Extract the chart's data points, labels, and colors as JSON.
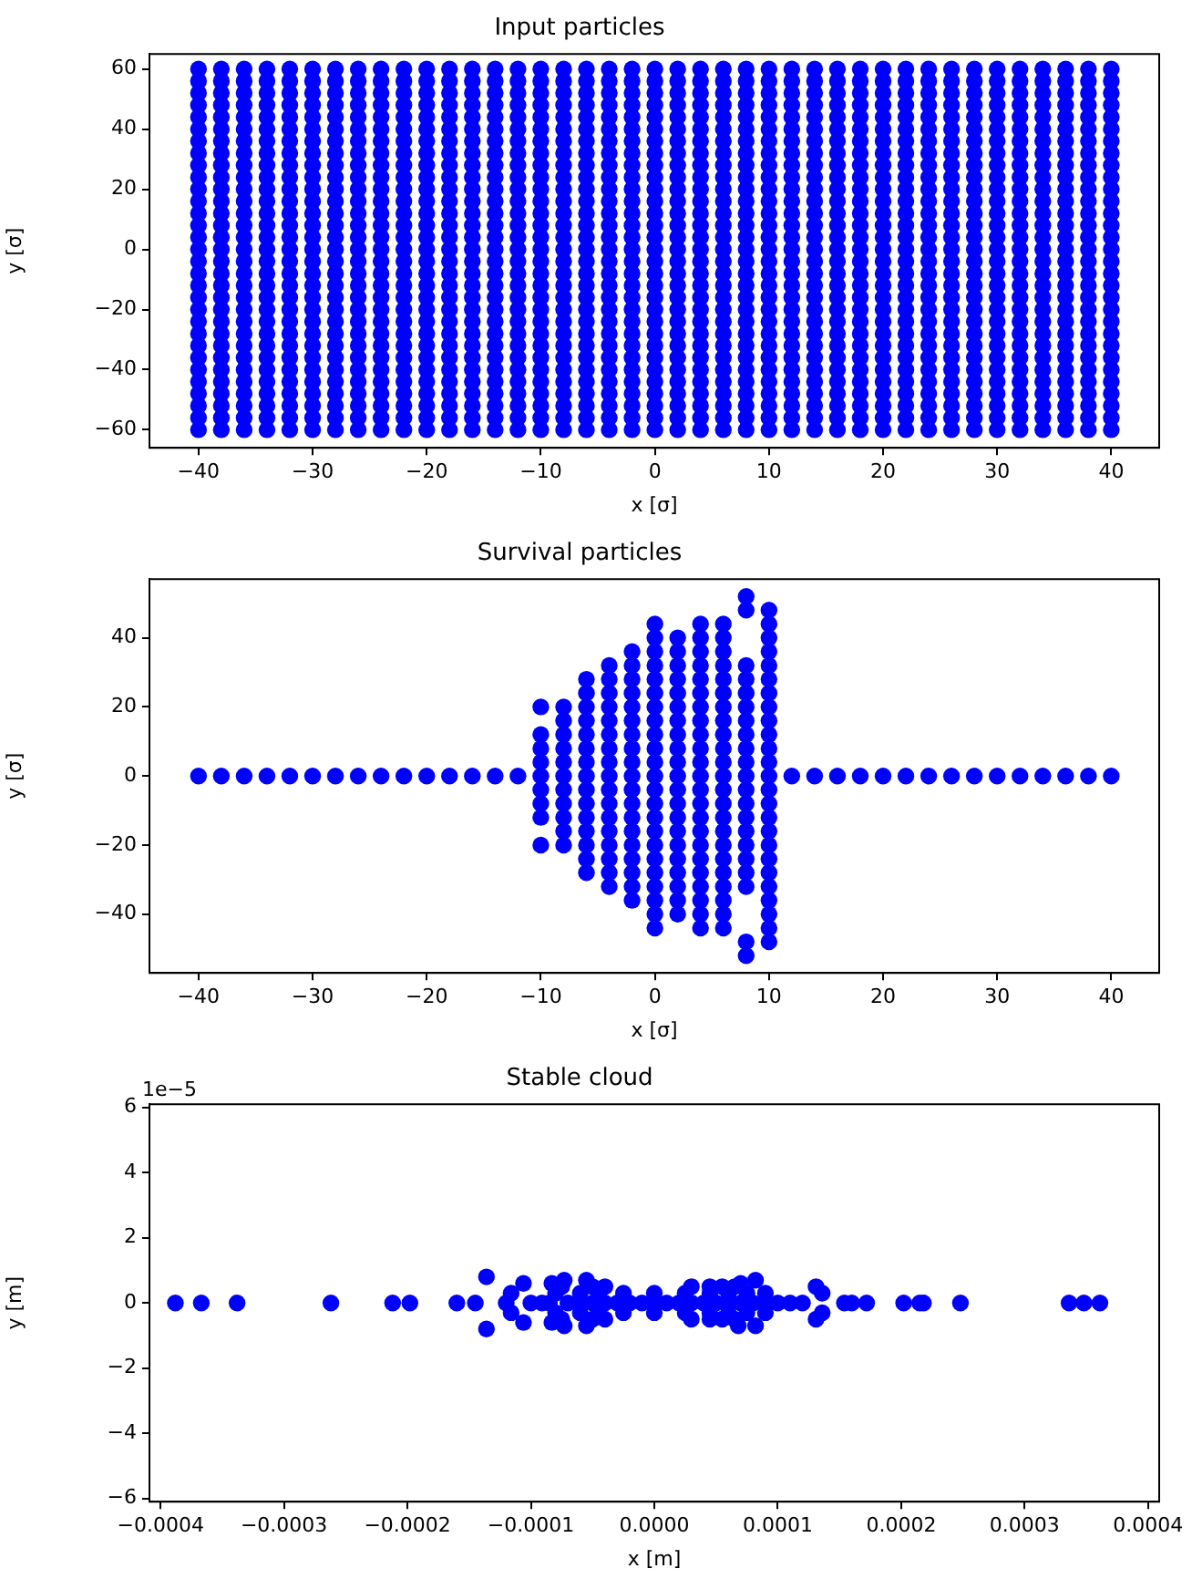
{
  "chart_data": [
    {
      "type": "scatter",
      "title": "Input particles",
      "xlabel": "x [σ]",
      "ylabel": "y [σ]",
      "marker": "circle",
      "x": [
        -40,
        -38,
        -36,
        -34,
        -32,
        -30,
        -28,
        -26,
        -24,
        -22,
        -20,
        -18,
        -16,
        -14,
        -12,
        -10,
        -8,
        -6,
        -4,
        -2,
        0,
        2,
        4,
        6,
        8,
        10,
        12,
        14,
        16,
        18,
        20,
        22,
        24,
        26,
        28,
        30,
        32,
        34,
        36,
        38,
        40
      ],
      "xlim": [
        -44.3,
        44.2
      ],
      "ylim": [
        -66,
        65
      ],
      "xticks": [
        {
          "value": -40,
          "label": "−40"
        },
        {
          "value": -30,
          "label": "−30"
        },
        {
          "value": -20,
          "label": "−20"
        },
        {
          "value": -10,
          "label": "−10"
        },
        0,
        10,
        20,
        30,
        40
      ],
      "yticks": [
        {
          "value": -60,
          "label": "−60"
        },
        {
          "value": -40,
          "label": "−40"
        },
        {
          "value": -20,
          "label": "−20"
        },
        0,
        20,
        40,
        60
      ],
      "series": [
        {
          "color": "#0000ff",
          "values": [
            60,
            60,
            60,
            60,
            60,
            60,
            60,
            60,
            60,
            60,
            60,
            60,
            60,
            60,
            60,
            60,
            60,
            60,
            60,
            60,
            60,
            60,
            60,
            60,
            60,
            60,
            60,
            60,
            60,
            60,
            60,
            60,
            60,
            60,
            60,
            60,
            60,
            60,
            60,
            60,
            60
          ]
        },
        {
          "color": "#0000ff",
          "values": [
            56,
            56,
            56,
            56,
            56,
            56,
            56,
            56,
            56,
            56,
            56,
            56,
            56,
            56,
            56,
            56,
            56,
            56,
            56,
            56,
            56,
            56,
            56,
            56,
            56,
            56,
            56,
            56,
            56,
            56,
            56,
            56,
            56,
            56,
            56,
            56,
            56,
            56,
            56,
            56,
            56
          ]
        },
        {
          "color": "#0000ff",
          "values": [
            52,
            52,
            52,
            52,
            52,
            52,
            52,
            52,
            52,
            52,
            52,
            52,
            52,
            52,
            52,
            52,
            52,
            52,
            52,
            52,
            52,
            52,
            52,
            52,
            52,
            52,
            52,
            52,
            52,
            52,
            52,
            52,
            52,
            52,
            52,
            52,
            52,
            52,
            52,
            52,
            52
          ]
        },
        {
          "color": "#0000ff",
          "values": [
            48,
            48,
            48,
            48,
            48,
            48,
            48,
            48,
            48,
            48,
            48,
            48,
            48,
            48,
            48,
            48,
            48,
            48,
            48,
            48,
            48,
            48,
            48,
            48,
            48,
            48,
            48,
            48,
            48,
            48,
            48,
            48,
            48,
            48,
            48,
            48,
            48,
            48,
            48,
            48,
            48
          ]
        },
        {
          "color": "#0000ff",
          "values": [
            44,
            44,
            44,
            44,
            44,
            44,
            44,
            44,
            44,
            44,
            44,
            44,
            44,
            44,
            44,
            44,
            44,
            44,
            44,
            44,
            44,
            44,
            44,
            44,
            44,
            44,
            44,
            44,
            44,
            44,
            44,
            44,
            44,
            44,
            44,
            44,
            44,
            44,
            44,
            44,
            44
          ]
        },
        {
          "color": "#0000ff",
          "values": [
            40,
            40,
            40,
            40,
            40,
            40,
            40,
            40,
            40,
            40,
            40,
            40,
            40,
            40,
            40,
            40,
            40,
            40,
            40,
            40,
            40,
            40,
            40,
            40,
            40,
            40,
            40,
            40,
            40,
            40,
            40,
            40,
            40,
            40,
            40,
            40,
            40,
            40,
            40,
            40,
            40
          ]
        },
        {
          "color": "#0000ff",
          "values": [
            36,
            36,
            36,
            36,
            36,
            36,
            36,
            36,
            36,
            36,
            36,
            36,
            36,
            36,
            36,
            36,
            36,
            36,
            36,
            36,
            36,
            36,
            36,
            36,
            36,
            36,
            36,
            36,
            36,
            36,
            36,
            36,
            36,
            36,
            36,
            36,
            36,
            36,
            36,
            36,
            36
          ]
        },
        {
          "color": "#0000ff",
          "values": [
            32,
            32,
            32,
            32,
            32,
            32,
            32,
            32,
            32,
            32,
            32,
            32,
            32,
            32,
            32,
            32,
            32,
            32,
            32,
            32,
            32,
            32,
            32,
            32,
            32,
            32,
            32,
            32,
            32,
            32,
            32,
            32,
            32,
            32,
            32,
            32,
            32,
            32,
            32,
            32,
            32
          ]
        },
        {
          "color": "#0000ff",
          "values": [
            28,
            28,
            28,
            28,
            28,
            28,
            28,
            28,
            28,
            28,
            28,
            28,
            28,
            28,
            28,
            28,
            28,
            28,
            28,
            28,
            28,
            28,
            28,
            28,
            28,
            28,
            28,
            28,
            28,
            28,
            28,
            28,
            28,
            28,
            28,
            28,
            28,
            28,
            28,
            28,
            28
          ]
        },
        {
          "color": "#0000ff",
          "values": [
            24,
            24,
            24,
            24,
            24,
            24,
            24,
            24,
            24,
            24,
            24,
            24,
            24,
            24,
            24,
            24,
            24,
            24,
            24,
            24,
            24,
            24,
            24,
            24,
            24,
            24,
            24,
            24,
            24,
            24,
            24,
            24,
            24,
            24,
            24,
            24,
            24,
            24,
            24,
            24,
            24
          ]
        },
        {
          "color": "#0000ff",
          "values": [
            20,
            20,
            20,
            20,
            20,
            20,
            20,
            20,
            20,
            20,
            20,
            20,
            20,
            20,
            20,
            20,
            20,
            20,
            20,
            20,
            20,
            20,
            20,
            20,
            20,
            20,
            20,
            20,
            20,
            20,
            20,
            20,
            20,
            20,
            20,
            20,
            20,
            20,
            20,
            20,
            20
          ]
        },
        {
          "color": "#0000ff",
          "values": [
            16,
            16,
            16,
            16,
            16,
            16,
            16,
            16,
            16,
            16,
            16,
            16,
            16,
            16,
            16,
            16,
            16,
            16,
            16,
            16,
            16,
            16,
            16,
            16,
            16,
            16,
            16,
            16,
            16,
            16,
            16,
            16,
            16,
            16,
            16,
            16,
            16,
            16,
            16,
            16,
            16
          ]
        },
        {
          "color": "#0000ff",
          "values": [
            12,
            12,
            12,
            12,
            12,
            12,
            12,
            12,
            12,
            12,
            12,
            12,
            12,
            12,
            12,
            12,
            12,
            12,
            12,
            12,
            12,
            12,
            12,
            12,
            12,
            12,
            12,
            12,
            12,
            12,
            12,
            12,
            12,
            12,
            12,
            12,
            12,
            12,
            12,
            12,
            12
          ]
        },
        {
          "color": "#0000ff",
          "values": [
            8,
            8,
            8,
            8,
            8,
            8,
            8,
            8,
            8,
            8,
            8,
            8,
            8,
            8,
            8,
            8,
            8,
            8,
            8,
            8,
            8,
            8,
            8,
            8,
            8,
            8,
            8,
            8,
            8,
            8,
            8,
            8,
            8,
            8,
            8,
            8,
            8,
            8,
            8,
            8,
            8
          ]
        },
        {
          "color": "#0000ff",
          "values": [
            4,
            4,
            4,
            4,
            4,
            4,
            4,
            4,
            4,
            4,
            4,
            4,
            4,
            4,
            4,
            4,
            4,
            4,
            4,
            4,
            4,
            4,
            4,
            4,
            4,
            4,
            4,
            4,
            4,
            4,
            4,
            4,
            4,
            4,
            4,
            4,
            4,
            4,
            4,
            4,
            4
          ]
        },
        {
          "color": "#0000ff",
          "values": [
            0,
            0,
            0,
            0,
            0,
            0,
            0,
            0,
            0,
            0,
            0,
            0,
            0,
            0,
            0,
            0,
            0,
            0,
            0,
            0,
            0,
            0,
            0,
            0,
            0,
            0,
            0,
            0,
            0,
            0,
            0,
            0,
            0,
            0,
            0,
            0,
            0,
            0,
            0,
            0,
            0
          ]
        },
        {
          "color": "#0000ff",
          "values": [
            -4,
            -4,
            -4,
            -4,
            -4,
            -4,
            -4,
            -4,
            -4,
            -4,
            -4,
            -4,
            -4,
            -4,
            -4,
            -4,
            -4,
            -4,
            -4,
            -4,
            -4,
            -4,
            -4,
            -4,
            -4,
            -4,
            -4,
            -4,
            -4,
            -4,
            -4,
            -4,
            -4,
            -4,
            -4,
            -4,
            -4,
            -4,
            -4,
            -4,
            -4
          ]
        },
        {
          "color": "#0000ff",
          "values": [
            -8,
            -8,
            -8,
            -8,
            -8,
            -8,
            -8,
            -8,
            -8,
            -8,
            -8,
            -8,
            -8,
            -8,
            -8,
            -8,
            -8,
            -8,
            -8,
            -8,
            -8,
            -8,
            -8,
            -8,
            -8,
            -8,
            -8,
            -8,
            -8,
            -8,
            -8,
            -8,
            -8,
            -8,
            -8,
            -8,
            -8,
            -8,
            -8,
            -8,
            -8
          ]
        },
        {
          "color": "#0000ff",
          "values": [
            -12,
            -12,
            -12,
            -12,
            -12,
            -12,
            -12,
            -12,
            -12,
            -12,
            -12,
            -12,
            -12,
            -12,
            -12,
            -12,
            -12,
            -12,
            -12,
            -12,
            -12,
            -12,
            -12,
            -12,
            -12,
            -12,
            -12,
            -12,
            -12,
            -12,
            -12,
            -12,
            -12,
            -12,
            -12,
            -12,
            -12,
            -12,
            -12,
            -12,
            -12
          ]
        },
        {
          "color": "#0000ff",
          "values": [
            -16,
            -16,
            -16,
            -16,
            -16,
            -16,
            -16,
            -16,
            -16,
            -16,
            -16,
            -16,
            -16,
            -16,
            -16,
            -16,
            -16,
            -16,
            -16,
            -16,
            -16,
            -16,
            -16,
            -16,
            -16,
            -16,
            -16,
            -16,
            -16,
            -16,
            -16,
            -16,
            -16,
            -16,
            -16,
            -16,
            -16,
            -16,
            -16,
            -16,
            -16
          ]
        },
        {
          "color": "#0000ff",
          "values": [
            -20,
            -20,
            -20,
            -20,
            -20,
            -20,
            -20,
            -20,
            -20,
            -20,
            -20,
            -20,
            -20,
            -20,
            -20,
            -20,
            -20,
            -20,
            -20,
            -20,
            -20,
            -20,
            -20,
            -20,
            -20,
            -20,
            -20,
            -20,
            -20,
            -20,
            -20,
            -20,
            -20,
            -20,
            -20,
            -20,
            -20,
            -20,
            -20,
            -20,
            -20
          ]
        },
        {
          "color": "#0000ff",
          "values": [
            -24,
            -24,
            -24,
            -24,
            -24,
            -24,
            -24,
            -24,
            -24,
            -24,
            -24,
            -24,
            -24,
            -24,
            -24,
            -24,
            -24,
            -24,
            -24,
            -24,
            -24,
            -24,
            -24,
            -24,
            -24,
            -24,
            -24,
            -24,
            -24,
            -24,
            -24,
            -24,
            -24,
            -24,
            -24,
            -24,
            -24,
            -24,
            -24,
            -24,
            -24
          ]
        },
        {
          "color": "#0000ff",
          "values": [
            -28,
            -28,
            -28,
            -28,
            -28,
            -28,
            -28,
            -28,
            -28,
            -28,
            -28,
            -28,
            -28,
            -28,
            -28,
            -28,
            -28,
            -28,
            -28,
            -28,
            -28,
            -28,
            -28,
            -28,
            -28,
            -28,
            -28,
            -28,
            -28,
            -28,
            -28,
            -28,
            -28,
            -28,
            -28,
            -28,
            -28,
            -28,
            -28,
            -28,
            -28
          ]
        },
        {
          "color": "#0000ff",
          "values": [
            -32,
            -32,
            -32,
            -32,
            -32,
            -32,
            -32,
            -32,
            -32,
            -32,
            -32,
            -32,
            -32,
            -32,
            -32,
            -32,
            -32,
            -32,
            -32,
            -32,
            -32,
            -32,
            -32,
            -32,
            -32,
            -32,
            -32,
            -32,
            -32,
            -32,
            -32,
            -32,
            -32,
            -32,
            -32,
            -32,
            -32,
            -32,
            -32,
            -32,
            -32
          ]
        },
        {
          "color": "#0000ff",
          "values": [
            -36,
            -36,
            -36,
            -36,
            -36,
            -36,
            -36,
            -36,
            -36,
            -36,
            -36,
            -36,
            -36,
            -36,
            -36,
            -36,
            -36,
            -36,
            -36,
            -36,
            -36,
            -36,
            -36,
            -36,
            -36,
            -36,
            -36,
            -36,
            -36,
            -36,
            -36,
            -36,
            -36,
            -36,
            -36,
            -36,
            -36,
            -36,
            -36,
            -36,
            -36
          ]
        },
        {
          "color": "#0000ff",
          "values": [
            -40,
            -40,
            -40,
            -40,
            -40,
            -40,
            -40,
            -40,
            -40,
            -40,
            -40,
            -40,
            -40,
            -40,
            -40,
            -40,
            -40,
            -40,
            -40,
            -40,
            -40,
            -40,
            -40,
            -40,
            -40,
            -40,
            -40,
            -40,
            -40,
            -40,
            -40,
            -40,
            -40,
            -40,
            -40,
            -40,
            -40,
            -40,
            -40,
            -40,
            -40
          ]
        },
        {
          "color": "#0000ff",
          "values": [
            -44,
            -44,
            -44,
            -44,
            -44,
            -44,
            -44,
            -44,
            -44,
            -44,
            -44,
            -44,
            -44,
            -44,
            -44,
            -44,
            -44,
            -44,
            -44,
            -44,
            -44,
            -44,
            -44,
            -44,
            -44,
            -44,
            -44,
            -44,
            -44,
            -44,
            -44,
            -44,
            -44,
            -44,
            -44,
            -44,
            -44,
            -44,
            -44,
            -44,
            -44
          ]
        },
        {
          "color": "#0000ff",
          "values": [
            -48,
            -48,
            -48,
            -48,
            -48,
            -48,
            -48,
            -48,
            -48,
            -48,
            -48,
            -48,
            -48,
            -48,
            -48,
            -48,
            -48,
            -48,
            -48,
            -48,
            -48,
            -48,
            -48,
            -48,
            -48,
            -48,
            -48,
            -48,
            -48,
            -48,
            -48,
            -48,
            -48,
            -48,
            -48,
            -48,
            -48,
            -48,
            -48,
            -48,
            -48
          ]
        },
        {
          "color": "#0000ff",
          "values": [
            -52,
            -52,
            -52,
            -52,
            -52,
            -52,
            -52,
            -52,
            -52,
            -52,
            -52,
            -52,
            -52,
            -52,
            -52,
            -52,
            -52,
            -52,
            -52,
            -52,
            -52,
            -52,
            -52,
            -52,
            -52,
            -52,
            -52,
            -52,
            -52,
            -52,
            -52,
            -52,
            -52,
            -52,
            -52,
            -52,
            -52,
            -52,
            -52,
            -52,
            -52
          ]
        },
        {
          "color": "#0000ff",
          "values": [
            -56,
            -56,
            -56,
            -56,
            -56,
            -56,
            -56,
            -56,
            -56,
            -56,
            -56,
            -56,
            -56,
            -56,
            -56,
            -56,
            -56,
            -56,
            -56,
            -56,
            -56,
            -56,
            -56,
            -56,
            -56,
            -56,
            -56,
            -56,
            -56,
            -56,
            -56,
            -56,
            -56,
            -56,
            -56,
            -56,
            -56,
            -56,
            -56,
            -56,
            -56
          ]
        },
        {
          "color": "#0000ff",
          "values": [
            -60,
            -60,
            -60,
            -60,
            -60,
            -60,
            -60,
            -60,
            -60,
            -60,
            -60,
            -60,
            -60,
            -60,
            -60,
            -60,
            -60,
            -60,
            -60,
            -60,
            -60,
            -60,
            -60,
            -60,
            -60,
            -60,
            -60,
            -60,
            -60,
            -60,
            -60,
            -60,
            -60,
            -60,
            -60,
            -60,
            -60,
            -60,
            -60,
            -60,
            -60
          ]
        }
      ]
    },
    {
      "type": "scatter",
      "title": "Survival particles",
      "xlabel": "x [σ]",
      "ylabel": "y [σ]",
      "marker": "circle",
      "xlim": [
        -44.3,
        44.2
      ],
      "ylim": [
        -57,
        57
      ],
      "xticks": [
        {
          "value": -40,
          "label": "−40"
        },
        {
          "value": -30,
          "label": "−30"
        },
        {
          "value": -20,
          "label": "−20"
        },
        {
          "value": -10,
          "label": "−10"
        },
        0,
        10,
        20,
        30,
        40
      ],
      "yticks": [
        {
          "value": -40,
          "label": "−40"
        },
        {
          "value": -20,
          "label": "−20"
        },
        0,
        20,
        40
      ],
      "series": [
        {
          "color": "#0000ff",
          "x": [
            -40,
            -38,
            -36,
            -34,
            -32,
            -30,
            -28,
            -26,
            -24,
            -22,
            -20,
            -18,
            -16,
            -14,
            -12,
            -10,
            -10,
            -10,
            -10,
            -10,
            -10,
            -10,
            -10,
            -10,
            -8,
            -8,
            -8,
            -8,
            -8,
            -8,
            -8,
            -8,
            -8,
            -8,
            -8,
            -6,
            -6,
            -6,
            -6,
            -6,
            -6,
            -6,
            -6,
            -6,
            -6,
            -6,
            -6,
            -6,
            -6,
            -6,
            -4,
            -4,
            -4,
            -4,
            -4,
            -4,
            -4,
            -4,
            -4,
            -4,
            -4,
            -4,
            -4,
            -4,
            -4,
            -4,
            -4,
            -2,
            -2,
            -2,
            -2,
            -2,
            -2,
            -2,
            -2,
            -2,
            -2,
            -2,
            -2,
            -2,
            -2,
            -2,
            -2,
            -2,
            -2,
            -2,
            0,
            0,
            0,
            0,
            0,
            0,
            0,
            0,
            0,
            0,
            0,
            0,
            0,
            0,
            0,
            0,
            0,
            0,
            0,
            0,
            0,
            0,
            0,
            2,
            2,
            2,
            2,
            2,
            2,
            2,
            2,
            2,
            2,
            2,
            2,
            2,
            2,
            2,
            2,
            2,
            2,
            2,
            2,
            2,
            4,
            4,
            4,
            4,
            4,
            4,
            4,
            4,
            4,
            4,
            4,
            4,
            4,
            4,
            4,
            4,
            4,
            4,
            4,
            4,
            4,
            4,
            4,
            6,
            6,
            6,
            6,
            6,
            6,
            6,
            6,
            6,
            6,
            6,
            6,
            6,
            6,
            6,
            6,
            6,
            6,
            6,
            6,
            6,
            6,
            6,
            8,
            8,
            8,
            8,
            8,
            8,
            8,
            8,
            8,
            8,
            8,
            8,
            8,
            8,
            8,
            8,
            8,
            8,
            8,
            8,
            8,
            10,
            10,
            10,
            10,
            10,
            10,
            10,
            10,
            10,
            10,
            10,
            10,
            10,
            10,
            10,
            10,
            10,
            10,
            10,
            10,
            10,
            10,
            10,
            10,
            10,
            12,
            14,
            16,
            18,
            20,
            22,
            24,
            26,
            28,
            30,
            32,
            34,
            36,
            38,
            40
          ],
          "values": [
            0,
            0,
            0,
            0,
            0,
            0,
            0,
            0,
            0,
            0,
            0,
            0,
            0,
            0,
            0,
            20,
            12,
            8,
            4,
            0,
            -4,
            -8,
            -12,
            -20,
            20,
            16,
            12,
            8,
            4,
            0,
            -4,
            -8,
            -12,
            -16,
            -20,
            28,
            24,
            20,
            16,
            12,
            8,
            4,
            0,
            -4,
            -8,
            -12,
            -16,
            -20,
            -24,
            -28,
            32,
            28,
            24,
            20,
            16,
            12,
            8,
            4,
            0,
            -4,
            -8,
            -12,
            -16,
            -20,
            -24,
            -28,
            -32,
            36,
            32,
            28,
            24,
            20,
            16,
            12,
            8,
            4,
            0,
            -4,
            -8,
            -12,
            -16,
            -20,
            -24,
            -28,
            -32,
            -36,
            44,
            40,
            36,
            32,
            28,
            24,
            20,
            16,
            12,
            8,
            4,
            0,
            -4,
            -8,
            -12,
            -16,
            -20,
            -24,
            -28,
            -32,
            -36,
            -40,
            -44,
            40,
            36,
            32,
            28,
            24,
            20,
            16,
            12,
            8,
            4,
            0,
            -4,
            -8,
            -12,
            -16,
            -20,
            -24,
            -28,
            -32,
            -36,
            -40,
            44,
            40,
            36,
            32,
            28,
            24,
            20,
            16,
            12,
            8,
            4,
            0,
            -4,
            -8,
            -12,
            -16,
            -20,
            -24,
            -28,
            -32,
            -36,
            -40,
            -44,
            44,
            40,
            36,
            32,
            28,
            24,
            20,
            16,
            12,
            8,
            4,
            0,
            -4,
            -8,
            -12,
            -16,
            -20,
            -24,
            -28,
            -32,
            -36,
            -40,
            -44,
            52,
            48,
            32,
            28,
            24,
            20,
            16,
            12,
            8,
            4,
            0,
            -4,
            -8,
            -12,
            -16,
            -20,
            -24,
            -28,
            -32,
            -48,
            -52,
            48,
            44,
            40,
            36,
            32,
            28,
            24,
            20,
            16,
            12,
            8,
            4,
            0,
            -4,
            -8,
            -12,
            -16,
            -20,
            -24,
            -28,
            -32,
            -36,
            -40,
            -44,
            -48,
            0,
            0,
            0,
            0,
            0,
            0,
            0,
            0,
            0,
            0,
            0,
            0,
            0,
            0,
            0
          ]
        }
      ]
    },
    {
      "type": "scatter",
      "title": "Stable cloud",
      "xlabel": "x [m]",
      "ylabel": "y [m]",
      "marker": "circle",
      "annotations": [
        "1e−5"
      ],
      "xlim": [
        -0.000409,
        0.000409
      ],
      "ylim": [
        -6.1,
        6.1
      ],
      "xticks": [
        {
          "value": -0.0004,
          "label": "−0.0004"
        },
        {
          "value": -0.0003,
          "label": "−0.0003"
        },
        {
          "value": -0.0002,
          "label": "−0.0002"
        },
        {
          "value": -0.0001,
          "label": "−0.0001"
        },
        {
          "value": 0,
          "label": "0.0000"
        },
        {
          "value": 0.0001,
          "label": "0.0001"
        },
        {
          "value": 0.0002,
          "label": "0.0002"
        },
        {
          "value": 0.0003,
          "label": "0.0003"
        },
        {
          "value": 0.0004,
          "label": "0.0004"
        }
      ],
      "yticks": [
        {
          "value": -6,
          "label": "−6"
        },
        {
          "value": -4,
          "label": "−4"
        },
        {
          "value": -2,
          "label": "−2"
        },
        0,
        2,
        4,
        6
      ],
      "series": [
        {
          "color": "#0000ff",
          "x": [
            -0.000388,
            -0.000367,
            -0.000338,
            -0.000262,
            -0.000212,
            -0.000198,
            -0.00016,
            -0.000145,
            -0.000136,
            -0.000136,
            -0.00012,
            -0.000116,
            -0.000116,
            -0.000106,
            -0.000106,
            -9.1e-05,
            -8.3e-05,
            -8.3e-05,
            -7.3e-05,
            -7.3e-05,
            -5.5e-05,
            -5.5e-05,
            -0.0001,
            -8.5e-05,
            -7e-05,
            -6e-05,
            -5e-05,
            -4e-05,
            -3e-05,
            -2e-05,
            -1e-05,
            0,
            1e-05,
            2e-05,
            3e-05,
            4e-05,
            5e-05,
            6e-05,
            7e-05,
            8e-05,
            9e-05,
            0.0001,
            0.00011,
            0.00012,
            -8e-05,
            -8e-05,
            -6e-05,
            -6e-05,
            -4.5e-05,
            -4.5e-05,
            -2.5e-05,
            -2.5e-05,
            0,
            0,
            2.5e-05,
            2.5e-05,
            4.5e-05,
            4.5e-05,
            6e-05,
            6e-05,
            7.5e-05,
            7.5e-05,
            9e-05,
            9e-05,
            -7.5e-05,
            -7.5e-05,
            -5e-05,
            -5e-05,
            -4e-05,
            -4e-05,
            3e-05,
            3e-05,
            4.5e-05,
            4.5e-05,
            5.5e-05,
            5.5e-05,
            6.5e-05,
            6.5e-05,
            6.8e-05,
            8.2e-05,
            8.2e-05,
            7e-05,
            0.000131,
            0.000131,
            0.000136,
            0.000136,
            0.000154,
            0.00016,
            0.000172,
            0.000202,
            0.000215,
            0.000218,
            0.000248,
            0.000336,
            0.000348,
            0.000361
          ],
          "values": [
            0,
            0,
            0,
            0,
            0,
            0,
            0,
            0,
            0.8,
            -0.8,
            0,
            0.3,
            -0.3,
            0.6,
            -0.6,
            0,
            0.6,
            -0.6,
            0.7,
            -0.7,
            0.7,
            -0.7,
            0,
            0,
            0,
            0,
            0,
            0,
            0,
            0,
            0,
            0,
            0,
            0,
            0,
            0,
            0,
            0,
            0,
            0,
            0,
            0,
            0,
            0,
            0.3,
            -0.3,
            0.3,
            -0.3,
            0.3,
            -0.3,
            0.3,
            -0.3,
            0.3,
            -0.3,
            0.3,
            -0.3,
            0.3,
            -0.3,
            0.3,
            -0.3,
            0.3,
            -0.3,
            0.3,
            -0.3,
            0.5,
            -0.5,
            0.5,
            -0.5,
            0.5,
            -0.5,
            0.5,
            -0.5,
            0.5,
            -0.5,
            0.5,
            -0.5,
            0.5,
            -0.5,
            -0.7,
            0.7,
            -0.7,
            0.6,
            0.5,
            -0.5,
            0.3,
            -0.3,
            0,
            0,
            0,
            0,
            0,
            0,
            0,
            0,
            0,
            0
          ]
        }
      ]
    }
  ]
}
